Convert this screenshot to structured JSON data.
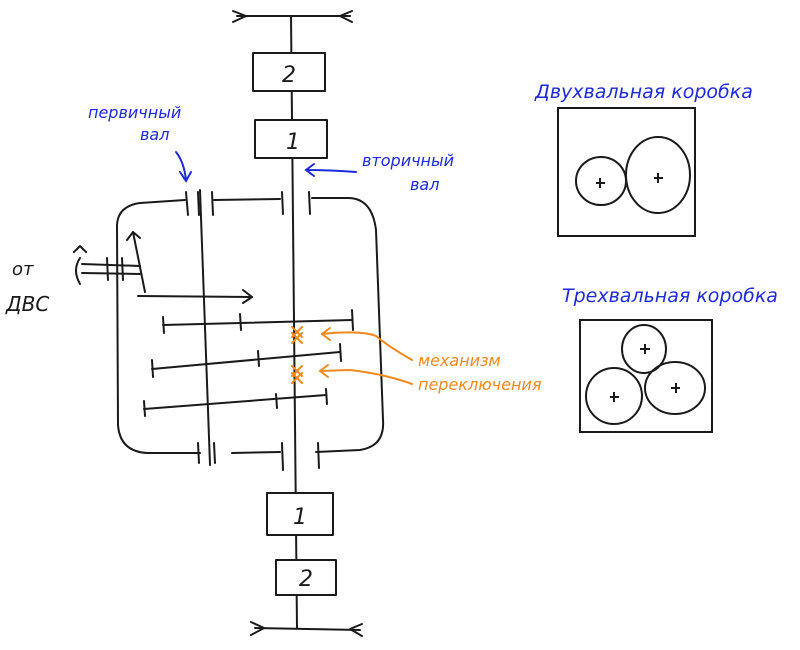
{
  "colors": {
    "ink": "#1a1a1a",
    "label_blue": "#1f2ad8",
    "label_orange": "#f08a1e"
  },
  "gearbox": {
    "input_label": [
      "от",
      "ДВС"
    ],
    "primary_shaft_label": [
      "первичный",
      "вал"
    ],
    "secondary_shaft_label": [
      "вторичный",
      "вал"
    ],
    "shift_mechanism_label": [
      "механизм",
      "переключения"
    ],
    "top_blocks": [
      "2",
      "1"
    ],
    "bottom_blocks": [
      "1",
      "2"
    ]
  },
  "two_shaft_box": {
    "title": "Двухвальная коробка"
  },
  "three_shaft_box": {
    "title": "Трехвальная коробка"
  }
}
